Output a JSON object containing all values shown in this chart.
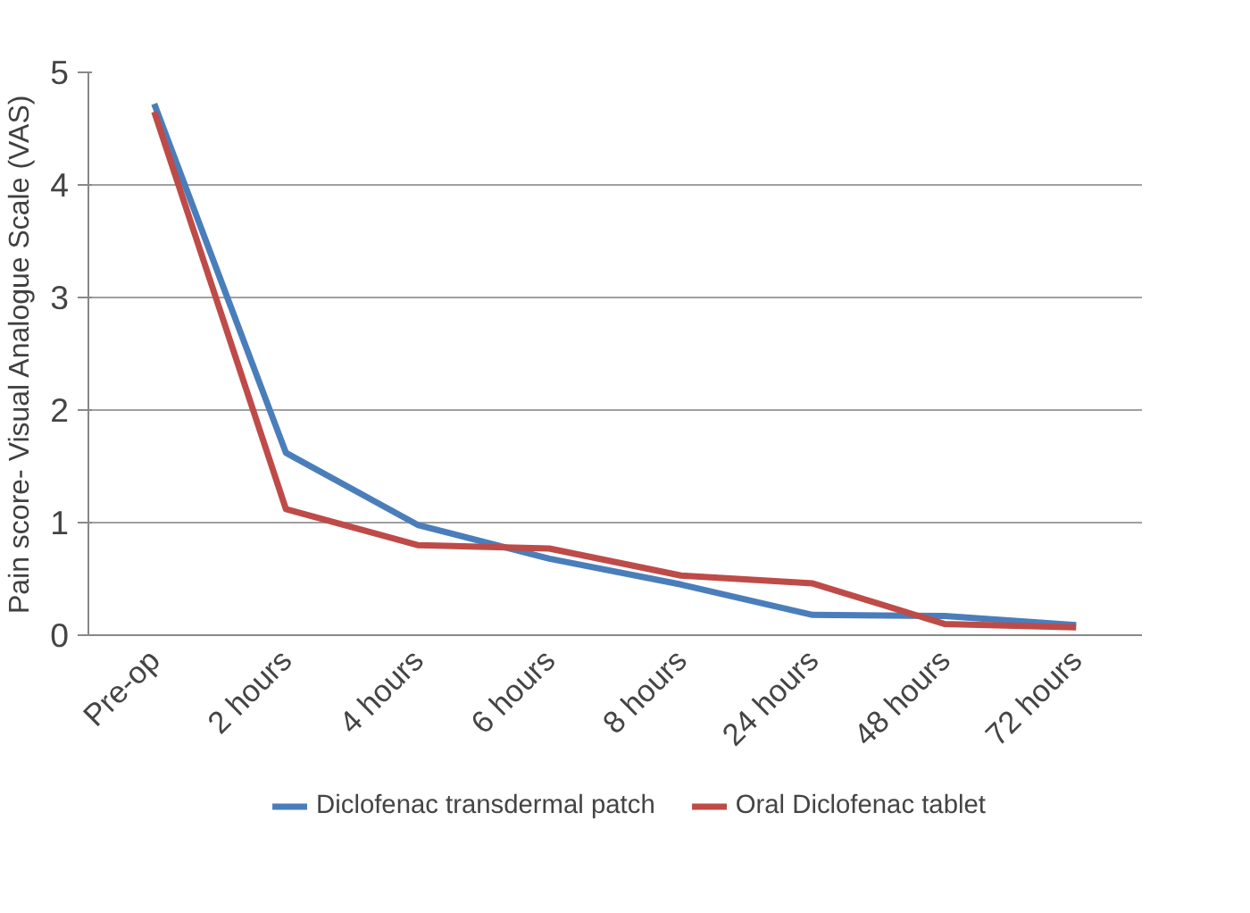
{
  "chart_data": {
    "type": "line",
    "ylabel": "Pain score- Visual Analogue Scale (VAS)",
    "categories": [
      "Pre-op",
      "2 hours",
      "4 hours",
      "6 hours",
      "8 hours",
      "24 hours",
      "48 hours",
      "72 hours"
    ],
    "series": [
      {
        "name": "Diclofenac transdermal patch",
        "color": "#4a7ebb",
        "values": [
          4.72,
          1.62,
          0.98,
          0.68,
          0.45,
          0.18,
          0.17,
          0.09
        ]
      },
      {
        "name": "Oral Diclofenac tablet",
        "color": "#be4b48",
        "values": [
          4.65,
          1.12,
          0.8,
          0.77,
          0.53,
          0.46,
          0.1,
          0.07
        ]
      }
    ],
    "ylim": [
      0,
      5
    ],
    "yticks": [
      0,
      1,
      2,
      3,
      4,
      5
    ],
    "grid": "y",
    "legend": "bottom",
    "marker": "none",
    "line_style": "solid"
  }
}
